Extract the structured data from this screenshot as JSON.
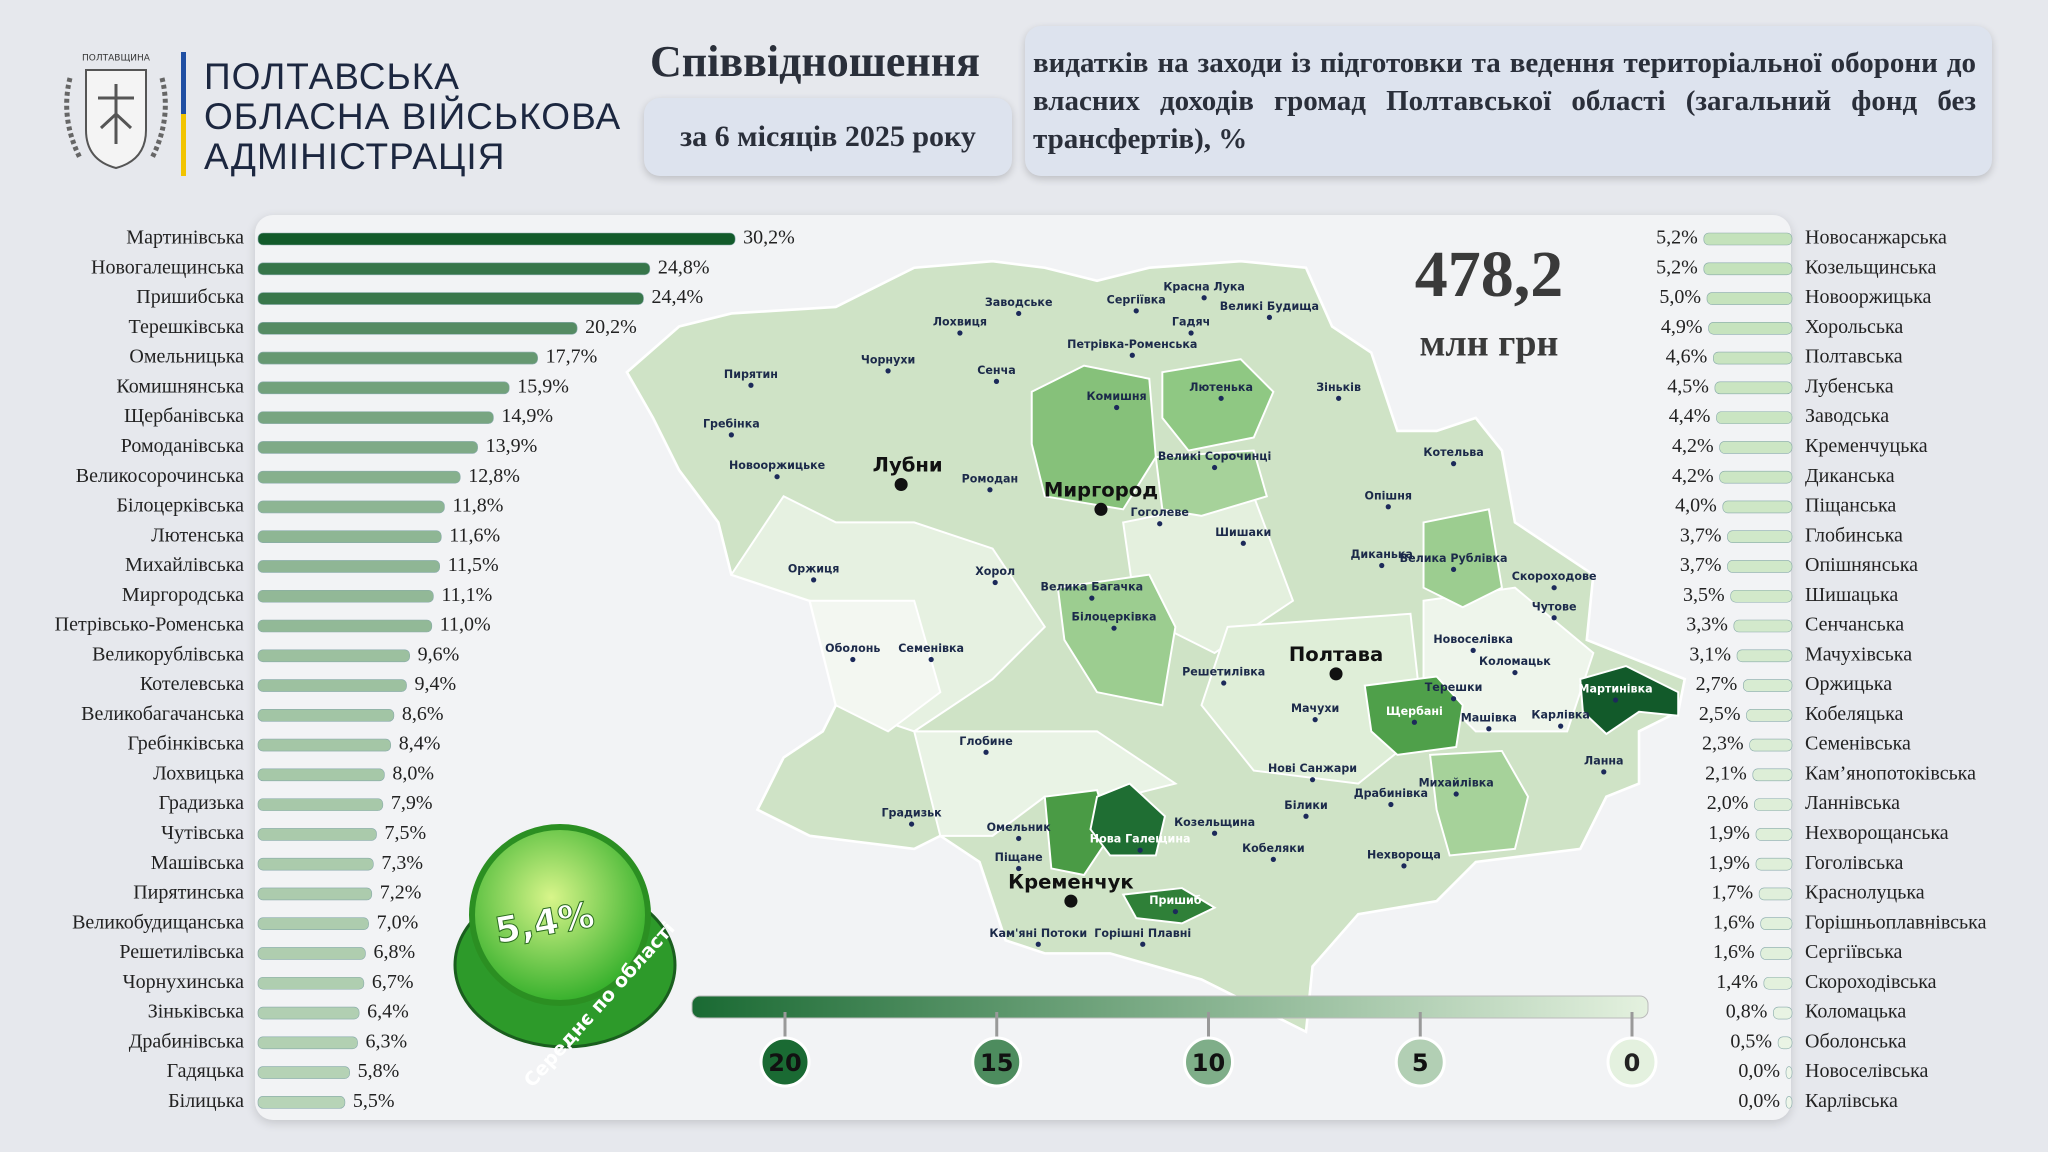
{
  "header": {
    "emblem_text": "ПОЛТАВЩИНА",
    "org_lines": [
      "ПОЛТАВСЬКА",
      "ОБЛАСНА ВІЙСЬКОВА",
      "АДМІНІСТРАЦІЯ"
    ],
    "title": "Співвідношення",
    "period": "за 6 місяців 2025 року",
    "description": "видатків на заходи із підготовки та ведення територіальної оборони до власних доходів громад Полтавської області (загальний фонд без трансфертів), %"
  },
  "total": {
    "value": "478,2",
    "unit": "млн грн"
  },
  "average": {
    "value": "5,4%",
    "label": "Середнє по області"
  },
  "scale": {
    "ticks": [
      20,
      15,
      10,
      5,
      0
    ],
    "colors": [
      "#1a6a33",
      "#e4f1df"
    ]
  },
  "map": {
    "cities": [
      "Лубни",
      "Миргород",
      "Полтава",
      "Кременчук"
    ],
    "places": [
      "Красна Лука",
      "Заводське",
      "Сергіївка",
      "Гадяч",
      "Великі Будища",
      "Лохвиця",
      "Пирятин",
      "Чорнухи",
      "Петрівка-Роменська",
      "Сенча",
      "Зіньків",
      "Комишня",
      "Лютенька",
      "Гребінка",
      "Новооржицьке",
      "Великі Сорочинці",
      "Котельва",
      "Ромодан",
      "Опішня",
      "Гоголеве",
      "Шишаки",
      "Велика Рублівка",
      "Диканька",
      "Оржиця",
      "Хорол",
      "Велика Багачка",
      "Скороходове",
      "Чутове",
      "Білоцерківка",
      "Новоселівка",
      "Коломацьк",
      "Оболонь",
      "Семенівка",
      "Решетилівка",
      "Терешки",
      "Мартинівка",
      "Мачухи",
      "Щербані",
      "Машівка",
      "Карлівка",
      "Глобине",
      "Нові Санжари",
      "Ланна",
      "Драбинівка",
      "Михайлівка",
      "Білики",
      "Градизьк",
      "Омельник",
      "Козельщина",
      "Нова Галещина",
      "Кобеляки",
      "Нехвороща",
      "Піщане",
      "Пришиб",
      "Кам'яні Потоки",
      "Горішні Плавні"
    ]
  },
  "chart_data": [
    {
      "type": "bar",
      "orientation": "horizontal",
      "direction": "right",
      "color_range": [
        "#dcefd6",
        "#125a2a"
      ],
      "categories": [
        "Мартинівська",
        "Новогалещинська",
        "Пришибська",
        "Терешківська",
        "Омельницька",
        "Комишнянська",
        "Щербанівська",
        "Ромоданівська",
        "Великосорочинська",
        "Білоцерківська",
        "Лютенська",
        "Михайлівська",
        "Миргородська",
        "Петрівсько-Роменська",
        "Великорублівська",
        "Котелевська",
        "Великобагачанська",
        "Гребінківська",
        "Лохвицька",
        "Градизька",
        "Чутівська",
        "Машівська",
        "Пирятинська",
        "Великобудищанська",
        "Решетилівська",
        "Чорнухинська",
        "Зіньківська",
        "Драбинівська",
        "Гадяцька",
        "Білицька"
      ],
      "values": [
        30.2,
        24.8,
        24.4,
        20.2,
        17.7,
        15.9,
        14.9,
        13.9,
        12.8,
        11.8,
        11.6,
        11.5,
        11.1,
        11.0,
        9.6,
        9.4,
        8.6,
        8.4,
        8.0,
        7.9,
        7.5,
        7.3,
        7.2,
        7.0,
        6.8,
        6.7,
        6.4,
        6.3,
        5.8,
        5.5
      ],
      "value_labels": [
        "30,2%",
        "24,8%",
        "24,4%",
        "20,2%",
        "17,7%",
        "15,9%",
        "14,9%",
        "13,9%",
        "12,8%",
        "11,8%",
        "11,6%",
        "11,5%",
        "11,1%",
        "11,0%",
        "9,6%",
        "9,4%",
        "8,6%",
        "8,4%",
        "8,0%",
        "7,9%",
        "7,5%",
        "7,3%",
        "7,2%",
        "7,0%",
        "6,8%",
        "6,7%",
        "6,4%",
        "6,3%",
        "5,8%",
        "5,5%"
      ]
    },
    {
      "type": "bar",
      "orientation": "horizontal",
      "direction": "left",
      "color_range": [
        "#eef6ea",
        "#c4e2bb"
      ],
      "categories": [
        "Новосанжарська",
        "Козельщинська",
        "Новооржицька",
        "Хорольська",
        "Полтавська",
        "Лубенська",
        "Заводська",
        "Кременчуцька",
        "Диканська",
        "Піщанська",
        "Глобинська",
        "Опішнянська",
        "Шишацька",
        "Сенчанська",
        "Мачухівська",
        "Оржицька",
        "Кобеляцька",
        "Семенівська",
        "Кам’янопотоківська",
        "Ланнівська",
        "Нехворощанська",
        "Гоголівська",
        "Краснолуцька",
        "Горішньоплавнівська",
        "Сергіївська",
        "Скороходівська",
        "Коломацька",
        "Оболонська",
        "Новоселівська",
        "Карлівська"
      ],
      "values": [
        5.2,
        5.2,
        5.0,
        4.9,
        4.6,
        4.5,
        4.4,
        4.2,
        4.2,
        4.0,
        3.7,
        3.7,
        3.5,
        3.3,
        3.1,
        2.7,
        2.5,
        2.3,
        2.1,
        2.0,
        1.9,
        1.9,
        1.7,
        1.6,
        1.6,
        1.4,
        0.8,
        0.5,
        0.0,
        0.0
      ],
      "value_labels": [
        "5,2%",
        "5,2%",
        "5,0%",
        "4,9%",
        "4,6%",
        "4,5%",
        "4,4%",
        "4,2%",
        "4,2%",
        "4,0%",
        "3,7%",
        "3,7%",
        "3,5%",
        "3,3%",
        "3,1%",
        "2,7%",
        "2,5%",
        "2,3%",
        "2,1%",
        "2,0%",
        "1,9%",
        "1,9%",
        "1,7%",
        "1,6%",
        "1,6%",
        "1,4%",
        "0,8%",
        "0,5%",
        "0,0%",
        "0,0%"
      ]
    }
  ]
}
